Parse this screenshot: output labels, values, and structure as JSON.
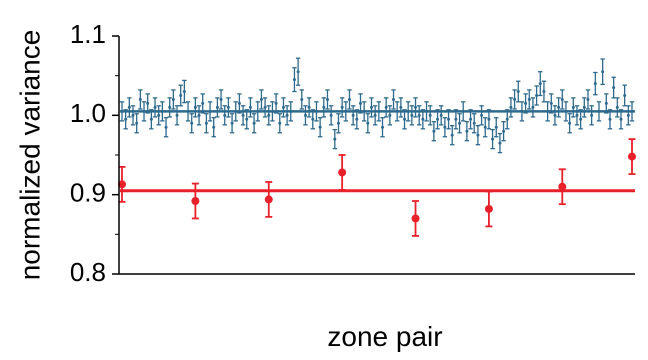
{
  "chart_data": {
    "type": "scatter",
    "title": "",
    "xlabel": "zone pair",
    "ylabel": "normalized variance",
    "ylim": [
      0.8,
      1.1
    ],
    "y_ticks": [
      "0.8",
      "0.9",
      "1.0",
      "1.1"
    ],
    "x_ticks_shown": false,
    "grid": false,
    "legend": "none",
    "series": [
      {
        "color": "#2e6a8e",
        "reference_line": 1.005,
        "x_max": 140,
        "points": [
          [
            1,
            1.005,
            0.012
          ],
          [
            2,
            0.995,
            0.012
          ],
          [
            3,
            1.01,
            0.012
          ],
          [
            4,
            1.0,
            0.012
          ],
          [
            5,
            0.99,
            0.012
          ],
          [
            6,
            1.02,
            0.012
          ],
          [
            7,
            1.005,
            0.012
          ],
          [
            8,
            1.015,
            0.012
          ],
          [
            9,
            0.995,
            0.012
          ],
          [
            10,
            1.01,
            0.012
          ],
          [
            11,
            1.0,
            0.012
          ],
          [
            12,
            1.005,
            0.012
          ],
          [
            13,
            0.985,
            0.012
          ],
          [
            14,
            1.01,
            0.012
          ],
          [
            15,
            1.02,
            0.012
          ],
          [
            16,
            1.0,
            0.012
          ],
          [
            17,
            1.025,
            0.013
          ],
          [
            18,
            1.03,
            0.014
          ],
          [
            19,
            1.005,
            0.012
          ],
          [
            20,
            0.99,
            0.012
          ],
          [
            21,
            1.01,
            0.012
          ],
          [
            22,
            1.0,
            0.012
          ],
          [
            23,
            1.015,
            0.012
          ],
          [
            24,
            0.99,
            0.012
          ],
          [
            25,
            1.005,
            0.012
          ],
          [
            26,
            0.985,
            0.012
          ],
          [
            27,
            1.01,
            0.012
          ],
          [
            28,
            1.02,
            0.012
          ],
          [
            29,
            1.0,
            0.012
          ],
          [
            30,
            1.01,
            0.012
          ],
          [
            31,
            0.99,
            0.012
          ],
          [
            32,
            1.005,
            0.012
          ],
          [
            33,
            1.015,
            0.012
          ],
          [
            34,
            1.0,
            0.012
          ],
          [
            35,
            0.995,
            0.012
          ],
          [
            36,
            1.01,
            0.012
          ],
          [
            37,
            0.99,
            0.012
          ],
          [
            38,
            1.005,
            0.012
          ],
          [
            39,
            1.02,
            0.012
          ],
          [
            40,
            1.01,
            0.012
          ],
          [
            41,
            1.0,
            0.012
          ],
          [
            42,
            1.005,
            0.012
          ],
          [
            43,
            1.015,
            0.012
          ],
          [
            44,
            0.99,
            0.012
          ],
          [
            45,
            1.01,
            0.012
          ],
          [
            46,
            1.0,
            0.012
          ],
          [
            47,
            1.005,
            0.012
          ],
          [
            48,
            1.045,
            0.015
          ],
          [
            49,
            1.055,
            0.017
          ],
          [
            50,
            1.02,
            0.012
          ],
          [
            51,
            1.0,
            0.012
          ],
          [
            52,
            1.01,
            0.012
          ],
          [
            53,
            0.995,
            0.012
          ],
          [
            54,
            1.005,
            0.012
          ],
          [
            55,
            0.985,
            0.012
          ],
          [
            56,
            1.01,
            0.012
          ],
          [
            57,
            1.02,
            0.012
          ],
          [
            58,
            1.0,
            0.012
          ],
          [
            59,
            0.97,
            0.012
          ],
          [
            60,
            0.99,
            0.012
          ],
          [
            61,
            1.01,
            0.012
          ],
          [
            62,
            1.005,
            0.012
          ],
          [
            63,
            1.02,
            0.012
          ],
          [
            64,
            1.0,
            0.012
          ],
          [
            65,
            0.995,
            0.012
          ],
          [
            66,
            1.015,
            0.012
          ],
          [
            67,
            1.005,
            0.012
          ],
          [
            68,
            0.99,
            0.012
          ],
          [
            69,
            1.01,
            0.012
          ],
          [
            70,
            1.0,
            0.012
          ],
          [
            71,
            1.005,
            0.012
          ],
          [
            72,
            0.985,
            0.012
          ],
          [
            73,
            1.01,
            0.012
          ],
          [
            74,
            1.0,
            0.012
          ],
          [
            75,
            1.02,
            0.012
          ],
          [
            76,
            1.005,
            0.012
          ],
          [
            77,
            1.01,
            0.012
          ],
          [
            78,
            0.995,
            0.012
          ],
          [
            79,
            1.005,
            0.012
          ],
          [
            80,
            1.0,
            0.012
          ],
          [
            81,
            1.01,
            0.012
          ],
          [
            82,
            1.0,
            0.012
          ],
          [
            83,
            0.995,
            0.012
          ],
          [
            84,
            1.005,
            0.012
          ],
          [
            85,
            1.0,
            0.012
          ],
          [
            86,
            0.98,
            0.012
          ],
          [
            87,
            0.995,
            0.012
          ],
          [
            88,
            1.0,
            0.012
          ],
          [
            89,
            0.985,
            0.012
          ],
          [
            90,
            0.995,
            0.012
          ],
          [
            91,
            0.975,
            0.012
          ],
          [
            92,
            0.995,
            0.012
          ],
          [
            93,
            0.99,
            0.012
          ],
          [
            94,
            1.005,
            0.012
          ],
          [
            95,
            0.98,
            0.012
          ],
          [
            96,
            0.995,
            0.012
          ],
          [
            97,
            0.99,
            0.012
          ],
          [
            98,
            0.975,
            0.012
          ],
          [
            99,
            1.0,
            0.012
          ],
          [
            100,
            0.985,
            0.012
          ],
          [
            101,
            0.995,
            0.012
          ],
          [
            102,
            0.97,
            0.012
          ],
          [
            103,
            0.985,
            0.012
          ],
          [
            104,
            0.965,
            0.012
          ],
          [
            105,
            0.98,
            0.012
          ],
          [
            106,
            0.995,
            0.012
          ],
          [
            107,
            1.01,
            0.012
          ],
          [
            108,
            1.02,
            0.012
          ],
          [
            109,
            1.03,
            0.013
          ],
          [
            110,
            1.005,
            0.012
          ],
          [
            111,
            1.015,
            0.012
          ],
          [
            112,
            1.02,
            0.012
          ],
          [
            113,
            1.01,
            0.012
          ],
          [
            114,
            1.025,
            0.012
          ],
          [
            115,
            1.04,
            0.015
          ],
          [
            116,
            1.03,
            0.013
          ],
          [
            117,
            1.005,
            0.012
          ],
          [
            118,
            1.015,
            0.012
          ],
          [
            119,
            1.0,
            0.012
          ],
          [
            120,
            1.01,
            0.012
          ],
          [
            121,
            1.02,
            0.012
          ],
          [
            122,
            1.005,
            0.012
          ],
          [
            123,
            0.99,
            0.012
          ],
          [
            124,
            1.01,
            0.012
          ],
          [
            125,
            1.0,
            0.012
          ],
          [
            126,
            0.995,
            0.012
          ],
          [
            127,
            1.01,
            0.012
          ],
          [
            128,
            1.02,
            0.012
          ],
          [
            129,
            1.0,
            0.012
          ],
          [
            130,
            1.04,
            0.014
          ],
          [
            131,
            1.005,
            0.012
          ],
          [
            132,
            1.055,
            0.016
          ],
          [
            133,
            1.015,
            0.012
          ],
          [
            134,
            0.995,
            0.012
          ],
          [
            135,
            1.035,
            0.013
          ],
          [
            136,
            1.01,
            0.012
          ],
          [
            137,
            0.995,
            0.012
          ],
          [
            138,
            1.025,
            0.013
          ],
          [
            139,
            1.0,
            0.012
          ],
          [
            140,
            1.005,
            0.012
          ]
        ]
      },
      {
        "color": "#e8202a",
        "reference_line": 0.905,
        "x_max": 140,
        "points": [
          [
            1,
            0.913,
            0.022
          ],
          [
            21,
            0.892,
            0.022
          ],
          [
            41,
            0.894,
            0.022
          ],
          [
            61,
            0.928,
            0.022
          ],
          [
            81,
            0.87,
            0.022
          ],
          [
            101,
            0.882,
            0.022
          ],
          [
            121,
            0.91,
            0.022
          ],
          [
            140,
            0.948,
            0.022
          ]
        ]
      }
    ]
  }
}
